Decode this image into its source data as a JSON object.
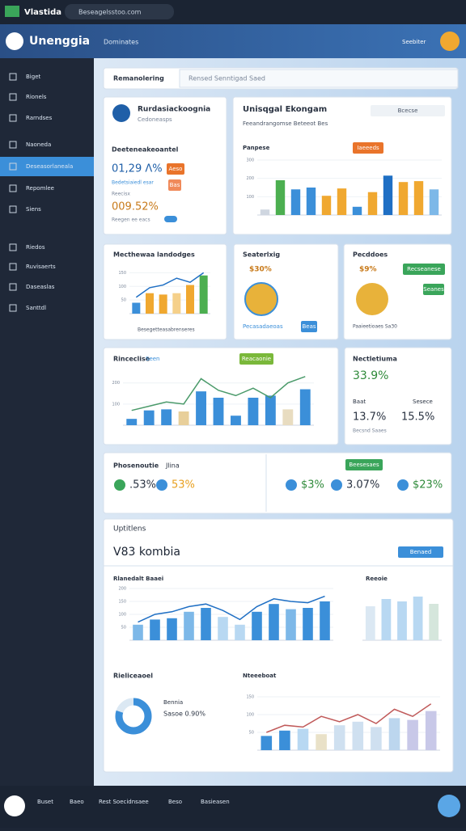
{
  "browser": {
    "tab": "Vlastida",
    "url": "Beseagelsstoo.com"
  },
  "header": {
    "app": "Unenggia",
    "menu": "Dominates",
    "user": "Seebiter"
  },
  "sidebar": [
    "Biget",
    "Rionels",
    "Rarndses",
    "Naoneda",
    "Deseasorlaneala",
    "Repomlee",
    "Siens",
    "Riedos",
    "Ruvisaerts",
    "Daseaslas",
    "Santtdl"
  ],
  "search": {
    "label": "Remanolering",
    "placeholder": "Rensed Senntigad Saed"
  },
  "card_a": {
    "title": "Rurdasiackoognia",
    "subtitle": "Cedoneasps",
    "section": "Deeteneakeoantel",
    "value1": "01,29 Λ%",
    "badge1": "Aeso",
    "note1": "Bedetsiaiedl esar",
    "label2": "Reecisx",
    "value2": "009.52%",
    "note2": "Reegen ee eacs",
    "badge2": "Bas"
  },
  "card_b": {
    "title": "Unisqgal Ekongam",
    "subtitle": "Feeandrangomse Beteeot Bes",
    "button": "Bcecse",
    "legend": "Panpese",
    "tag": "Iaeeeds"
  },
  "card_c": {
    "title": "Mecthewaa landodges",
    "caption": "Besegetteasabrenseres"
  },
  "card_d": {
    "title": "Seaterlxig",
    "value": "$30%",
    "link": "Pecasadaeoas",
    "badge": "Beas"
  },
  "card_e": {
    "title": "Pecddoes",
    "value": "$9%",
    "button1": "Recseanese",
    "button2": "Seanes",
    "note": "Paaieetioaes Sa30"
  },
  "card_f": {
    "title": "Rinceclise",
    "tag": "Seen",
    "button": "Reacaonie"
  },
  "card_g": {
    "title": "Nectletiuma",
    "value": "33.9%",
    "label1": "Baat",
    "label2": "Sesece",
    "value2": "13.7%",
    "value3": "15.5%",
    "note": "Becsnd Saaes"
  },
  "kpis": {
    "title": "Phosenoutie",
    "subtitle": "Jlina",
    "items": [
      ".53%",
      "53%",
      "$3%",
      "3.07%",
      "$23%"
    ],
    "button": "Beesesaes"
  },
  "panel": {
    "title": "Uptitlens",
    "heading": "V83 kombia",
    "button": "Benaed",
    "chart1": "Rlanedalt Baaei",
    "chart2": "Reeoie",
    "donut_title": "Rieliceaoel",
    "donut_label": "Bennia",
    "donut_value": "Sasoe 0.90%",
    "trend_title": "Nteeeboat"
  },
  "bottom": [
    "Buset",
    "Baeo",
    "Rest Soecidnsaee",
    "Beso",
    "Basieasen"
  ],
  "donut": {
    "value": 80,
    "color": "#3b8fd9"
  },
  "charts": [
    {
      "type": "bar",
      "values": [
        30,
        190,
        140,
        150,
        105,
        145,
        45,
        125,
        215,
        180,
        185,
        140
      ],
      "colors": [
        "#cfd6e0",
        "#4caf50",
        "#3b8fd9",
        "#3b8fd9",
        "#f0a830",
        "#f0a830",
        "#3b8fd9",
        "#f0a830",
        "#1f6fc4",
        "#f0a830",
        "#f0a830",
        "#7db8e8"
      ],
      "ylim": [
        0,
        300
      ],
      "yticks": [
        100,
        200,
        300
      ]
    },
    {
      "type": "bar",
      "values": [
        40,
        75,
        70,
        75,
        105,
        140
      ],
      "colors": [
        "#3b8fd9",
        "#f0a830",
        "#f0a830",
        "#f5d08a",
        "#f0a830",
        "#4caf50"
      ],
      "line": [
        60,
        95,
        105,
        130,
        115,
        150
      ],
      "line_color": "#1f6fc4",
      "ylim": [
        0,
        160
      ],
      "yticks": [
        50,
        100,
        150
      ]
    },
    {
      "type": "bar",
      "values": [
        30,
        70,
        75,
        65,
        160,
        130,
        45,
        130,
        140,
        75,
        170
      ],
      "colors": [
        "#3b8fd9",
        "#3b8fd9",
        "#3b8fd9",
        "#e8cf9a",
        "#3b8fd9",
        "#3b8fd9",
        "#3b8fd9",
        "#3b8fd9",
        "#3b8fd9",
        "#e8dcc0",
        "#3b8fd9"
      ],
      "line": [
        70,
        90,
        110,
        100,
        220,
        165,
        140,
        175,
        130,
        200,
        230
      ],
      "line_color": "#4a9a6a",
      "ylim": [
        0,
        260
      ],
      "yticks": [
        100,
        200
      ]
    },
    {
      "type": "bar",
      "values": [
        60,
        80,
        85,
        110,
        125,
        90,
        60,
        110,
        140,
        120,
        125,
        150
      ],
      "colors": [
        "#7db8e8",
        "#3b8fd9",
        "#3b8fd9",
        "#7db8e8",
        "#3b8fd9",
        "#b8d8f2",
        "#b8d8f2",
        "#3b8fd9",
        "#3b8fd9",
        "#7db8e8",
        "#3b8fd9",
        "#3b8fd9"
      ],
      "line": [
        70,
        100,
        110,
        130,
        140,
        115,
        80,
        130,
        160,
        150,
        145,
        170
      ],
      "line_color": "#1f6fc4",
      "ylim": [
        0,
        200
      ],
      "yticks": [
        50,
        100,
        150,
        200
      ]
    },
    {
      "type": "bar",
      "values": [
        70,
        85,
        80,
        90,
        75
      ],
      "colors": [
        "#dbe8f3",
        "#b8d8f2",
        "#b8d8f2",
        "#b8d8f2",
        "#d5e6dc"
      ],
      "ylim": [
        0,
        100
      ],
      "yticks": []
    },
    {
      "type": "bar",
      "values": [
        40,
        55,
        60,
        45,
        70,
        80,
        65,
        90,
        85,
        110
      ],
      "colors": [
        "#3b8fd9",
        "#3b8fd9",
        "#b8d8f2",
        "#e9e1c8",
        "#cfe0f0",
        "#cfe0f0",
        "#cfe0f0",
        "#bcd6ee",
        "#c8c8e8",
        "#c8c8e8"
      ],
      "line": [
        50,
        70,
        65,
        95,
        80,
        100,
        75,
        115,
        95,
        130
      ],
      "line_color": "#c05a5a",
      "ylim": [
        0,
        150
      ],
      "yticks": [
        50,
        100,
        150
      ]
    }
  ]
}
